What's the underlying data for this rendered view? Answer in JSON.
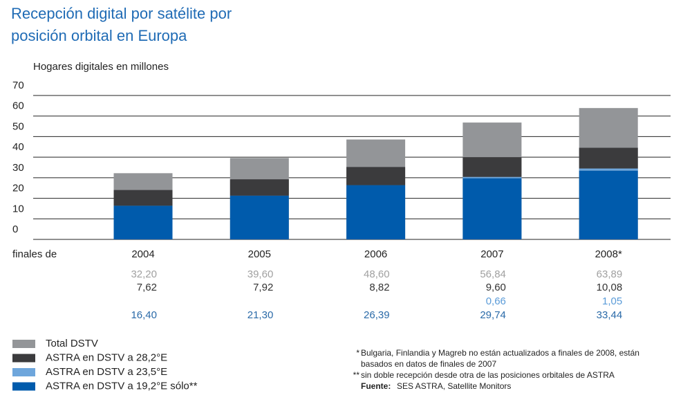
{
  "chart_data": {
    "type": "bar",
    "title": [
      "Recepción digital por satélite por",
      "posición orbital en Europa"
    ],
    "y_label": "Hogares digitales en millones",
    "x_label": "finales de",
    "categories": [
      "2004",
      "2005",
      "2006",
      "2007",
      "2008*"
    ],
    "ylim": [
      0,
      70
    ],
    "yticks": [
      0,
      10,
      20,
      30,
      40,
      50,
      60,
      70
    ],
    "grid": true,
    "total": {
      "name": "Total DSTV",
      "color": "#939598",
      "text_color": "#a0a0a0",
      "values": [
        32.2,
        39.6,
        48.6,
        56.84,
        63.89
      ],
      "value_labels": [
        "32,20",
        "39,60",
        "48,60",
        "56,84",
        "63,89"
      ]
    },
    "series": [
      {
        "name": "ASTRA en DSTV a 19,2°E sólo**",
        "color": "#005bac",
        "text_color": "#2a6aa8",
        "values": [
          16.4,
          21.3,
          26.39,
          29.74,
          33.44
        ],
        "value_labels": [
          "16,40",
          "21,30",
          "26,39",
          "29,74",
          "33,44"
        ]
      },
      {
        "name": "ASTRA en DSTV a 23,5°E",
        "color": "#6ea6dc",
        "text_color": "#5a9bd8",
        "values": [
          null,
          null,
          null,
          0.66,
          1.05
        ],
        "value_labels": [
          null,
          null,
          null,
          "0,66",
          "1,05"
        ]
      },
      {
        "name": "ASTRA en DSTV a 28,2°E",
        "color": "#3b3b3d",
        "text_color": "#333333",
        "values": [
          7.62,
          7.92,
          8.82,
          9.6,
          10.08
        ],
        "value_labels": [
          "7,62",
          "7,92",
          "8,82",
          "9,60",
          "10,08"
        ]
      }
    ],
    "notes": [
      "Bulgaria, Finlandia y Magreb no están actualizados a finales de 2008, están",
      "basados en datos de finales de 2007",
      "sin doble recepción desde otra de las posiciones orbitales de ASTRA"
    ],
    "note_marks": [
      "*",
      "**"
    ],
    "source_label": "Fuente:",
    "source": "SES ASTRA, Satellite Monitors"
  }
}
